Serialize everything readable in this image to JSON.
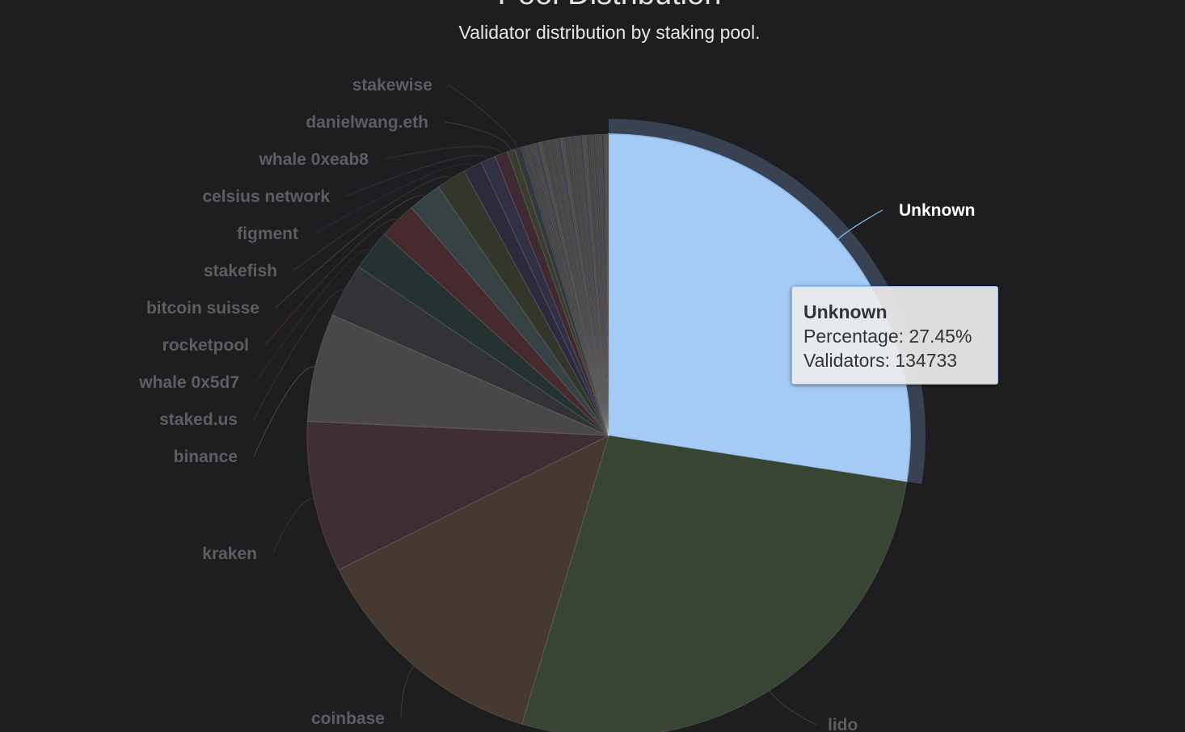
{
  "title": "Pool Distribution",
  "subtitle": "Validator distribution by staking pool.",
  "tooltip": {
    "name": "Unknown",
    "percentage_line": "Percentage: 27.45%",
    "validators_line": "Validators: 134733"
  },
  "chart_data": {
    "type": "pie",
    "title": "Pool Distribution",
    "subtitle": "Validator distribution by staking pool.",
    "start_angle_deg": 0,
    "direction": "clockwise",
    "highlighted": "Unknown",
    "slices": [
      {
        "name": "Unknown",
        "value": 27.45,
        "validators": 134733,
        "color": "#a3cbf5"
      },
      {
        "name": "lido",
        "value": 27.2,
        "color": "#384533"
      },
      {
        "name": "coinbase",
        "value": 13.0,
        "color": "#463a30"
      },
      {
        "name": "kraken",
        "value": 8.1,
        "color": "#3f2e35"
      },
      {
        "name": "binance",
        "value": 5.8,
        "color": "#4a4748"
      },
      {
        "name": "staked.us",
        "value": 2.9,
        "color": "#333236"
      },
      {
        "name": "whale 0x5d7",
        "value": 2.2,
        "color": "#243231"
      },
      {
        "name": "rocketpool",
        "value": 2.0,
        "color": "#472a2e"
      },
      {
        "name": "bitcoin suisse",
        "value": 1.8,
        "color": "#374245"
      },
      {
        "name": "stakefish",
        "value": 1.6,
        "color": "#33372b"
      },
      {
        "name": "figment",
        "value": 1.0,
        "color": "#2b2b3c"
      },
      {
        "name": "celsius network",
        "value": 0.8,
        "color": "#313045"
      },
      {
        "name": "whale 0xeab8",
        "value": 0.7,
        "color": "#3f2a32"
      },
      {
        "name": "danielwang.eth",
        "value": 0.4,
        "color": "#3a3d2d"
      },
      {
        "name": "stakewise",
        "value": 0.35,
        "color": "#32393a"
      }
    ],
    "other_slivers": {
      "count": 40,
      "total_value": 4.7,
      "colors": [
        "#3a3f52",
        "#4a3f3a",
        "#3d4a44",
        "#4a3a4a",
        "#44443a",
        "#3a4850",
        "#504040",
        "#3c3c50",
        "#48504a",
        "#52483e"
      ]
    }
  }
}
